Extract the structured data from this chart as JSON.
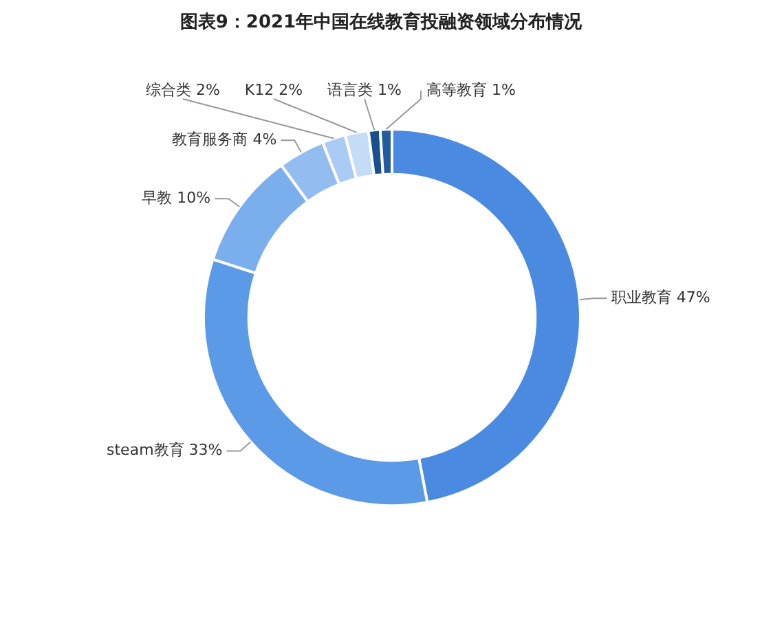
{
  "chart_data": {
    "type": "donut",
    "title": "图表9：2021年中国在线教育投融资领域分布情况",
    "categories": [
      "职业教育",
      "steam教育",
      "早教",
      "教育服务商",
      "综合类",
      "K12",
      "语言类",
      "高等教育"
    ],
    "values": [
      47,
      33,
      10,
      4,
      2,
      2,
      1,
      1
    ],
    "colors": [
      "#4a8ae0",
      "#5b9ae6",
      "#7aaeec",
      "#93bdf0",
      "#aacbf3",
      "#c5dcf6",
      "#1a4f8f",
      "#245a9e"
    ],
    "value_labels": [
      "47%",
      "33%",
      "10%",
      "4%",
      "2%",
      "2%",
      "1%",
      "1%"
    ]
  }
}
